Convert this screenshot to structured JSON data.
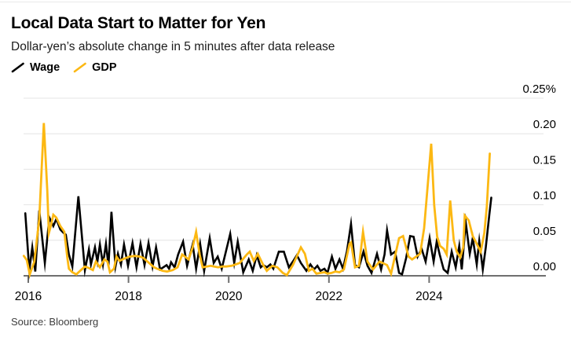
{
  "header": {
    "title": "Local Data Start to Matter for Yen",
    "subtitle": "Dollar-yen’s absolute change in 5 minutes after data release"
  },
  "legend": [
    {
      "label": "Wage",
      "color": "#000000",
      "icon": "slash-line-swatch-icon"
    },
    {
      "label": "GDP",
      "color": "#fcb813",
      "icon": "slash-line-swatch-icon"
    }
  ],
  "source": "Source: Bloomberg",
  "colors": {
    "wage_line": "#000000",
    "gdp_line": "#fcb813",
    "gridline": "#e4e4e4",
    "axis": "#6f6f6f",
    "text": "#000000"
  },
  "chart_data": {
    "type": "line",
    "title": "Local Data Start to Matter for Yen",
    "subtitle": "Dollar-yen’s absolute change in 5 minutes after data release",
    "xlabel": "",
    "ylabel": "",
    "unit": "%",
    "ylim": [
      0,
      0.25
    ],
    "xlim": [
      2015.9,
      2025.45
    ],
    "grid": "horizontal",
    "legend_position": "top-left",
    "y_ticks": [
      {
        "value": 0.0,
        "label": "0.00"
      },
      {
        "value": 0.05,
        "label": "0.05"
      },
      {
        "value": 0.1,
        "label": "0.10"
      },
      {
        "value": 0.15,
        "label": "0.15"
      },
      {
        "value": 0.2,
        "label": "0.20"
      },
      {
        "value": 0.25,
        "label": "0.25%"
      }
    ],
    "x_ticks": [
      {
        "value": 2016,
        "label": "2016"
      },
      {
        "value": 2018,
        "label": "2018"
      },
      {
        "value": 2020,
        "label": "2020"
      },
      {
        "value": 2022,
        "label": "2022"
      },
      {
        "value": 2024,
        "label": "2024"
      }
    ],
    "series": [
      {
        "name": "Wage",
        "color": "#000000",
        "points": [
          [
            2015.94,
            0.088
          ],
          [
            2016.02,
            0.008
          ],
          [
            2016.08,
            0.04
          ],
          [
            2016.14,
            0.006
          ],
          [
            2016.22,
            0.092
          ],
          [
            2016.33,
            0.018
          ],
          [
            2016.42,
            0.082
          ],
          [
            2016.5,
            0.07
          ],
          [
            2016.56,
            0.08
          ],
          [
            2016.64,
            0.065
          ],
          [
            2016.71,
            0.06
          ],
          [
            2016.75,
            0.058
          ],
          [
            2016.81,
            0.03
          ],
          [
            2016.88,
            0.013
          ],
          [
            2017.0,
            0.112
          ],
          [
            2017.13,
            0.008
          ],
          [
            2017.21,
            0.037
          ],
          [
            2017.25,
            0.016
          ],
          [
            2017.33,
            0.04
          ],
          [
            2017.38,
            0.02
          ],
          [
            2017.43,
            0.044
          ],
          [
            2017.49,
            0.016
          ],
          [
            2017.55,
            0.045
          ],
          [
            2017.6,
            0.014
          ],
          [
            2017.66,
            0.09
          ],
          [
            2017.74,
            0.013
          ],
          [
            2017.79,
            0.031
          ],
          [
            2017.85,
            0.016
          ],
          [
            2017.91,
            0.044
          ],
          [
            2017.99,
            0.014
          ],
          [
            2018.08,
            0.046
          ],
          [
            2018.16,
            0.012
          ],
          [
            2018.24,
            0.045
          ],
          [
            2018.32,
            0.015
          ],
          [
            2018.4,
            0.046
          ],
          [
            2018.48,
            0.013
          ],
          [
            2018.55,
            0.04
          ],
          [
            2018.63,
            0.009
          ],
          [
            2018.76,
            0.015
          ],
          [
            2018.81,
            0.01
          ],
          [
            2018.85,
            0.019
          ],
          [
            2018.92,
            0.012
          ],
          [
            2018.99,
            0.03
          ],
          [
            2019.09,
            0.048
          ],
          [
            2019.17,
            0.014
          ],
          [
            2019.28,
            0.044
          ],
          [
            2019.35,
            0.01
          ],
          [
            2019.43,
            0.045
          ],
          [
            2019.51,
            0.007
          ],
          [
            2019.62,
            0.053
          ],
          [
            2019.7,
            0.018
          ],
          [
            2019.78,
            0.027
          ],
          [
            2019.86,
            0.01
          ],
          [
            2020.03,
            0.059
          ],
          [
            2020.11,
            0.018
          ],
          [
            2020.18,
            0.048
          ],
          [
            2020.29,
            0.005
          ],
          [
            2020.4,
            0.023
          ],
          [
            2020.48,
            0.007
          ],
          [
            2020.56,
            0.029
          ],
          [
            2020.64,
            0.012
          ],
          [
            2020.69,
            0.015
          ],
          [
            2020.76,
            0.012
          ],
          [
            2020.83,
            0.016
          ],
          [
            2020.89,
            0.01
          ],
          [
            2021.0,
            0.034
          ],
          [
            2021.1,
            0.034
          ],
          [
            2021.2,
            0.012
          ],
          [
            2021.3,
            0.022
          ],
          [
            2021.36,
            0.029
          ],
          [
            2021.44,
            0.018
          ],
          [
            2021.55,
            0.007
          ],
          [
            2021.63,
            0.016
          ],
          [
            2021.7,
            0.009
          ],
          [
            2021.77,
            0.014
          ],
          [
            2021.83,
            0.007
          ],
          [
            2021.91,
            0.01
          ],
          [
            2021.97,
            0.004
          ],
          [
            2022.06,
            0.027
          ],
          [
            2022.13,
            0.01
          ],
          [
            2022.21,
            0.023
          ],
          [
            2022.28,
            0.01
          ],
          [
            2022.36,
            0.035
          ],
          [
            2022.44,
            0.073
          ],
          [
            2022.52,
            0.015
          ],
          [
            2022.6,
            0.012
          ],
          [
            2022.69,
            0.034
          ],
          [
            2022.77,
            0.014
          ],
          [
            2022.85,
            0.004
          ],
          [
            2022.96,
            0.031
          ],
          [
            2023.04,
            0.009
          ],
          [
            2023.11,
            0.03
          ],
          [
            2023.16,
            0.064
          ],
          [
            2023.24,
            0.03
          ],
          [
            2023.32,
            0.034
          ],
          [
            2023.4,
            0.004
          ],
          [
            2023.46,
            0.002
          ],
          [
            2023.54,
            0.025
          ],
          [
            2023.62,
            0.056
          ],
          [
            2023.69,
            0.055
          ],
          [
            2023.77,
            0.027
          ],
          [
            2023.85,
            0.038
          ],
          [
            2023.93,
            0.02
          ],
          [
            2024.01,
            0.053
          ],
          [
            2024.09,
            0.02
          ],
          [
            2024.15,
            0.048
          ],
          [
            2024.21,
            0.03
          ],
          [
            2024.29,
            0.009
          ],
          [
            2024.37,
            0.004
          ],
          [
            2024.45,
            0.034
          ],
          [
            2024.53,
            0.012
          ],
          [
            2024.6,
            0.042
          ],
          [
            2024.65,
            0.009
          ],
          [
            2024.73,
            0.075
          ],
          [
            2024.81,
            0.031
          ],
          [
            2024.87,
            0.053
          ],
          [
            2024.95,
            0.016
          ],
          [
            2025.0,
            0.049
          ],
          [
            2025.07,
            0.009
          ],
          [
            2025.13,
            0.04
          ],
          [
            2025.2,
            0.086
          ],
          [
            2025.24,
            0.11
          ]
        ]
      },
      {
        "name": "GDP",
        "color": "#fcb813",
        "points": [
          [
            2015.91,
            0.028
          ],
          [
            2015.97,
            0.022
          ],
          [
            2016.03,
            0.002
          ],
          [
            2016.12,
            0.02
          ],
          [
            2016.22,
            0.08
          ],
          [
            2016.31,
            0.215
          ],
          [
            2016.38,
            0.12
          ],
          [
            2016.41,
            0.06
          ],
          [
            2016.45,
            0.07
          ],
          [
            2016.5,
            0.086
          ],
          [
            2016.56,
            0.082
          ],
          [
            2016.64,
            0.07
          ],
          [
            2016.72,
            0.062
          ],
          [
            2016.78,
            0.025
          ],
          [
            2016.81,
            0.01
          ],
          [
            2016.88,
            0.005
          ],
          [
            2016.96,
            0.002
          ],
          [
            2017.05,
            0.008
          ],
          [
            2017.13,
            0.013
          ],
          [
            2017.21,
            0.011
          ],
          [
            2017.29,
            0.008
          ],
          [
            2017.35,
            0.02
          ],
          [
            2017.43,
            0.012
          ],
          [
            2017.52,
            0.023
          ],
          [
            2017.58,
            0.02
          ],
          [
            2017.63,
            0.005
          ],
          [
            2017.71,
            0.01
          ],
          [
            2017.76,
            0.027
          ],
          [
            2017.82,
            0.021
          ],
          [
            2017.91,
            0.024
          ],
          [
            2018.02,
            0.027
          ],
          [
            2018.13,
            0.028
          ],
          [
            2018.23,
            0.027
          ],
          [
            2018.3,
            0.025
          ],
          [
            2018.41,
            0.018
          ],
          [
            2018.51,
            0.012
          ],
          [
            2018.57,
            0.01
          ],
          [
            2018.68,
            0.007
          ],
          [
            2018.77,
            0.006
          ],
          [
            2018.88,
            0.008
          ],
          [
            2018.98,
            0.012
          ],
          [
            2019.07,
            0.03
          ],
          [
            2019.2,
            0.023
          ],
          [
            2019.28,
            0.04
          ],
          [
            2019.35,
            0.062
          ],
          [
            2019.42,
            0.03
          ],
          [
            2019.48,
            0.012
          ],
          [
            2019.56,
            0.013
          ],
          [
            2019.64,
            0.014
          ],
          [
            2019.71,
            0.013
          ],
          [
            2019.79,
            0.012
          ],
          [
            2019.87,
            0.013
          ],
          [
            2019.95,
            0.013
          ],
          [
            2020.06,
            0.014
          ],
          [
            2020.14,
            0.016
          ],
          [
            2020.22,
            0.018
          ],
          [
            2020.29,
            0.024
          ],
          [
            2020.36,
            0.03
          ],
          [
            2020.42,
            0.034
          ],
          [
            2020.5,
            0.021
          ],
          [
            2020.58,
            0.031
          ],
          [
            2020.69,
            0.015
          ],
          [
            2020.76,
            0.007
          ],
          [
            2020.87,
            0.014
          ],
          [
            2020.97,
            0.012
          ],
          [
            2021.08,
            0.004
          ],
          [
            2021.16,
            0.001
          ],
          [
            2021.28,
            0.015
          ],
          [
            2021.44,
            0.04
          ],
          [
            2021.52,
            0.031
          ],
          [
            2021.6,
            0.007
          ],
          [
            2021.67,
            0.01
          ],
          [
            2021.75,
            0.003
          ],
          [
            2021.83,
            0.004
          ],
          [
            2021.91,
            0.005
          ],
          [
            2021.97,
            0.003
          ],
          [
            2022.05,
            0.004
          ],
          [
            2022.13,
            0.006
          ],
          [
            2022.21,
            0.005
          ],
          [
            2022.3,
            0.009
          ],
          [
            2022.41,
            0.045
          ],
          [
            2022.44,
            0.047
          ],
          [
            2022.52,
            0.012
          ],
          [
            2022.6,
            0.014
          ],
          [
            2022.68,
            0.062
          ],
          [
            2022.77,
            0.02
          ],
          [
            2022.88,
            0.009
          ],
          [
            2023.01,
            0.02
          ],
          [
            2023.16,
            0.015
          ],
          [
            2023.24,
            0.003
          ],
          [
            2023.4,
            0.053
          ],
          [
            2023.48,
            0.056
          ],
          [
            2023.59,
            0.027
          ],
          [
            2023.66,
            0.023
          ],
          [
            2023.74,
            0.027
          ],
          [
            2023.82,
            0.031
          ],
          [
            2023.9,
            0.067
          ],
          [
            2024.04,
            0.186
          ],
          [
            2024.1,
            0.1
          ],
          [
            2024.16,
            0.055
          ],
          [
            2024.22,
            0.042
          ],
          [
            2024.29,
            0.038
          ],
          [
            2024.35,
            0.03
          ],
          [
            2024.42,
            0.106
          ],
          [
            2024.49,
            0.05
          ],
          [
            2024.55,
            0.034
          ],
          [
            2024.62,
            0.026
          ],
          [
            2024.68,
            0.04
          ],
          [
            2024.71,
            0.085
          ],
          [
            2024.79,
            0.078
          ],
          [
            2024.87,
            0.056
          ],
          [
            2024.95,
            0.045
          ],
          [
            2025.03,
            0.034
          ],
          [
            2025.1,
            0.06
          ],
          [
            2025.15,
            0.097
          ],
          [
            2025.21,
            0.172
          ]
        ]
      }
    ]
  }
}
